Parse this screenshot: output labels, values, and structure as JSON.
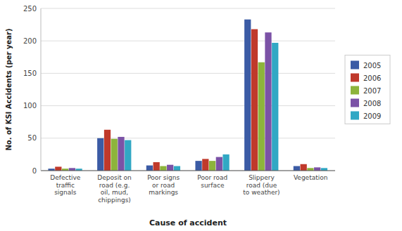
{
  "chart_data": {
    "type": "bar",
    "xlabel": "Cause of accident",
    "ylabel": "No. of KSI Accidents (per year)",
    "categories": [
      "Defective\ntraffic\nsignals",
      "Deposit on\nroad (e.g.\noil, mud,\nchippings)",
      "Poor signs\nor road\nmarkings",
      "Poor road\nsurface",
      "Slippery\nroad (due\nto weather)",
      "Vegetation"
    ],
    "series": [
      {
        "name": "2005",
        "color": "#3B5BA5",
        "values": [
          3,
          50,
          8,
          15,
          233,
          7
        ]
      },
      {
        "name": "2006",
        "color": "#C0392B",
        "values": [
          6,
          63,
          13,
          18,
          218,
          10
        ]
      },
      {
        "name": "2007",
        "color": "#8DB43B",
        "values": [
          3,
          49,
          7,
          15,
          167,
          4
        ]
      },
      {
        "name": "2008",
        "color": "#7B52A6",
        "values": [
          4,
          52,
          9,
          21,
          213,
          5
        ]
      },
      {
        "name": "2009",
        "color": "#31A8C4",
        "values": [
          3,
          47,
          7,
          25,
          197,
          4
        ]
      }
    ],
    "ylim": [
      0,
      250
    ],
    "yticks": [
      0,
      50,
      100,
      150,
      200,
      250
    ],
    "grid": true,
    "legend": "right"
  }
}
